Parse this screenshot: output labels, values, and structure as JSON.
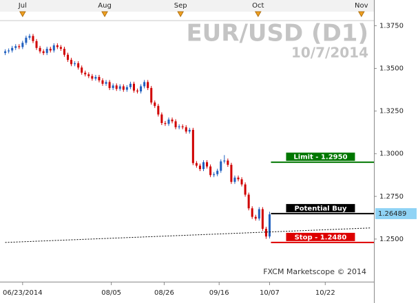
{
  "chart_data": {
    "type": "candlestick",
    "title": "EUR/USD (D1)",
    "subtitle": "10/7/2014",
    "watermark": "FXCM Marketscope © 2014",
    "up_color": "#1f5fbf",
    "down_color": "#d00000",
    "open": [
      1.359,
      1.36,
      1.3605,
      1.362,
      1.363,
      1.3625,
      1.365,
      1.368,
      1.369,
      1.366,
      1.362,
      1.36,
      1.359,
      1.3615,
      1.3605,
      1.3635,
      1.3625,
      1.3615,
      1.358,
      1.355,
      1.3525,
      1.353,
      1.3505,
      1.3475,
      1.3465,
      1.3455,
      1.344,
      1.345,
      1.343,
      1.341,
      1.342,
      1.3385,
      1.34,
      1.338,
      1.3395,
      1.3375,
      1.339,
      1.341,
      1.337,
      1.3365,
      1.3395,
      1.342,
      1.3385,
      1.33,
      1.328,
      1.323,
      1.318,
      1.3175,
      1.32,
      1.319,
      1.3155,
      1.316,
      1.3155,
      1.313,
      1.314,
      1.2945,
      1.293,
      1.291,
      1.295,
      1.2925,
      1.2875,
      1.288,
      1.29,
      1.2955,
      1.296,
      1.2935,
      1.2835,
      1.286,
      1.285,
      1.282,
      1.276,
      1.268,
      1.263,
      1.262,
      1.2675,
      1.256,
      1.2515
    ],
    "high": [
      1.3612,
      1.3617,
      1.3632,
      1.3642,
      1.3642,
      1.3662,
      1.3692,
      1.3702,
      1.3702,
      1.3672,
      1.3632,
      1.3612,
      1.3627,
      1.3627,
      1.3647,
      1.3647,
      1.3637,
      1.3627,
      1.3592,
      1.3562,
      1.3542,
      1.3542,
      1.3517,
      1.3487,
      1.3477,
      1.3467,
      1.3462,
      1.3462,
      1.3442,
      1.3432,
      1.3432,
      1.3412,
      1.3412,
      1.3407,
      1.3407,
      1.3402,
      1.3422,
      1.3422,
      1.3382,
      1.3407,
      1.3432,
      1.3432,
      1.3397,
      1.3312,
      1.3292,
      1.3242,
      1.3192,
      1.3212,
      1.3212,
      1.3202,
      1.3172,
      1.3172,
      1.3167,
      1.3152,
      1.3152,
      1.2957,
      1.2942,
      1.2962,
      1.2962,
      1.2937,
      1.2892,
      1.2912,
      1.2967,
      1.2992,
      1.2972,
      1.2947,
      1.2872,
      1.2872,
      1.2862,
      1.2832,
      1.2772,
      1.2692,
      1.2642,
      1.2687,
      1.2687,
      1.2572,
      1.266
    ],
    "low": [
      1.3578,
      1.3588,
      1.3593,
      1.3608,
      1.3613,
      1.3613,
      1.3638,
      1.3668,
      1.3648,
      1.3608,
      1.3588,
      1.3578,
      1.3578,
      1.3593,
      1.3593,
      1.3613,
      1.3603,
      1.3568,
      1.3538,
      1.3513,
      1.3513,
      1.3493,
      1.3463,
      1.3453,
      1.3443,
      1.3428,
      1.3428,
      1.3418,
      1.3398,
      1.3398,
      1.3373,
      1.3373,
      1.3368,
      1.3368,
      1.3363,
      1.3363,
      1.3378,
      1.3358,
      1.3353,
      1.3353,
      1.3383,
      1.3373,
      1.3288,
      1.3268,
      1.3218,
      1.3168,
      1.3163,
      1.3163,
      1.3178,
      1.3143,
      1.3143,
      1.3143,
      1.3118,
      1.3118,
      1.2933,
      1.2918,
      1.2898,
      1.2898,
      1.2913,
      1.2863,
      1.2863,
      1.2868,
      1.2888,
      1.2943,
      1.2923,
      1.2823,
      1.2823,
      1.2838,
      1.2808,
      1.2748,
      1.2668,
      1.2618,
      1.2608,
      1.2608,
      1.2548,
      1.2501,
      1.2503
    ],
    "close": [
      1.36,
      1.3605,
      1.362,
      1.363,
      1.3625,
      1.365,
      1.368,
      1.369,
      1.366,
      1.362,
      1.36,
      1.359,
      1.3615,
      1.3605,
      1.3635,
      1.3625,
      1.3615,
      1.358,
      1.355,
      1.3525,
      1.353,
      1.3505,
      1.3475,
      1.3465,
      1.3455,
      1.344,
      1.345,
      1.343,
      1.341,
      1.342,
      1.3385,
      1.34,
      1.338,
      1.3395,
      1.3375,
      1.339,
      1.341,
      1.337,
      1.3365,
      1.3395,
      1.342,
      1.3385,
      1.33,
      1.328,
      1.323,
      1.318,
      1.3175,
      1.32,
      1.319,
      1.3155,
      1.316,
      1.3155,
      1.313,
      1.314,
      1.2945,
      1.293,
      1.291,
      1.295,
      1.2925,
      1.2875,
      1.288,
      1.29,
      1.2955,
      1.296,
      1.2935,
      1.2835,
      1.286,
      1.285,
      1.282,
      1.276,
      1.268,
      1.263,
      1.262,
      1.2675,
      1.256,
      1.2515,
      1.2645
    ],
    "average": {
      "x": [
        0,
        105
      ],
      "values": [
        1.248,
        1.2565
      ]
    },
    "levels": [
      {
        "label": "Limit - 1.2950",
        "value": 1.295,
        "color": "#007700"
      },
      {
        "label": "Potential Buy",
        "value": 1.26489,
        "color": "#000000"
      },
      {
        "label": "Stop - 1.2480",
        "value": 1.248,
        "color": "#dd0000"
      }
    ],
    "last_price": {
      "value": 1.26489,
      "label": "1.26489"
    },
    "xlim": [
      -1.5,
      106
    ],
    "ylim": [
      1.225,
      1.378
    ],
    "yticks": [
      {
        "value": 1.375,
        "label": "1.3750"
      },
      {
        "value": 1.35,
        "label": "1.3500"
      },
      {
        "value": 1.325,
        "label": "1.3250"
      },
      {
        "value": 1.3,
        "label": "1.3000"
      },
      {
        "value": 1.275,
        "label": "1.2750"
      },
      {
        "value": 1.25,
        "label": "1.2500"
      }
    ],
    "xticks": [
      {
        "value": 5,
        "label": "06/23/2014"
      },
      {
        "value": 30.5,
        "label": "08/05"
      },
      {
        "value": 45.7,
        "label": "08/26"
      },
      {
        "value": 61.5,
        "label": "09/16"
      },
      {
        "value": 76,
        "label": "10/07"
      },
      {
        "value": 92,
        "label": "10/22"
      }
    ],
    "month_ticks": [
      {
        "value": 5,
        "label": "Jul"
      },
      {
        "value": 28.6,
        "label": "Aug"
      },
      {
        "value": 50.4,
        "label": "Sep"
      },
      {
        "value": 72.7,
        "label": "Oct"
      },
      {
        "value": 102.4,
        "label": "Nov"
      }
    ]
  }
}
